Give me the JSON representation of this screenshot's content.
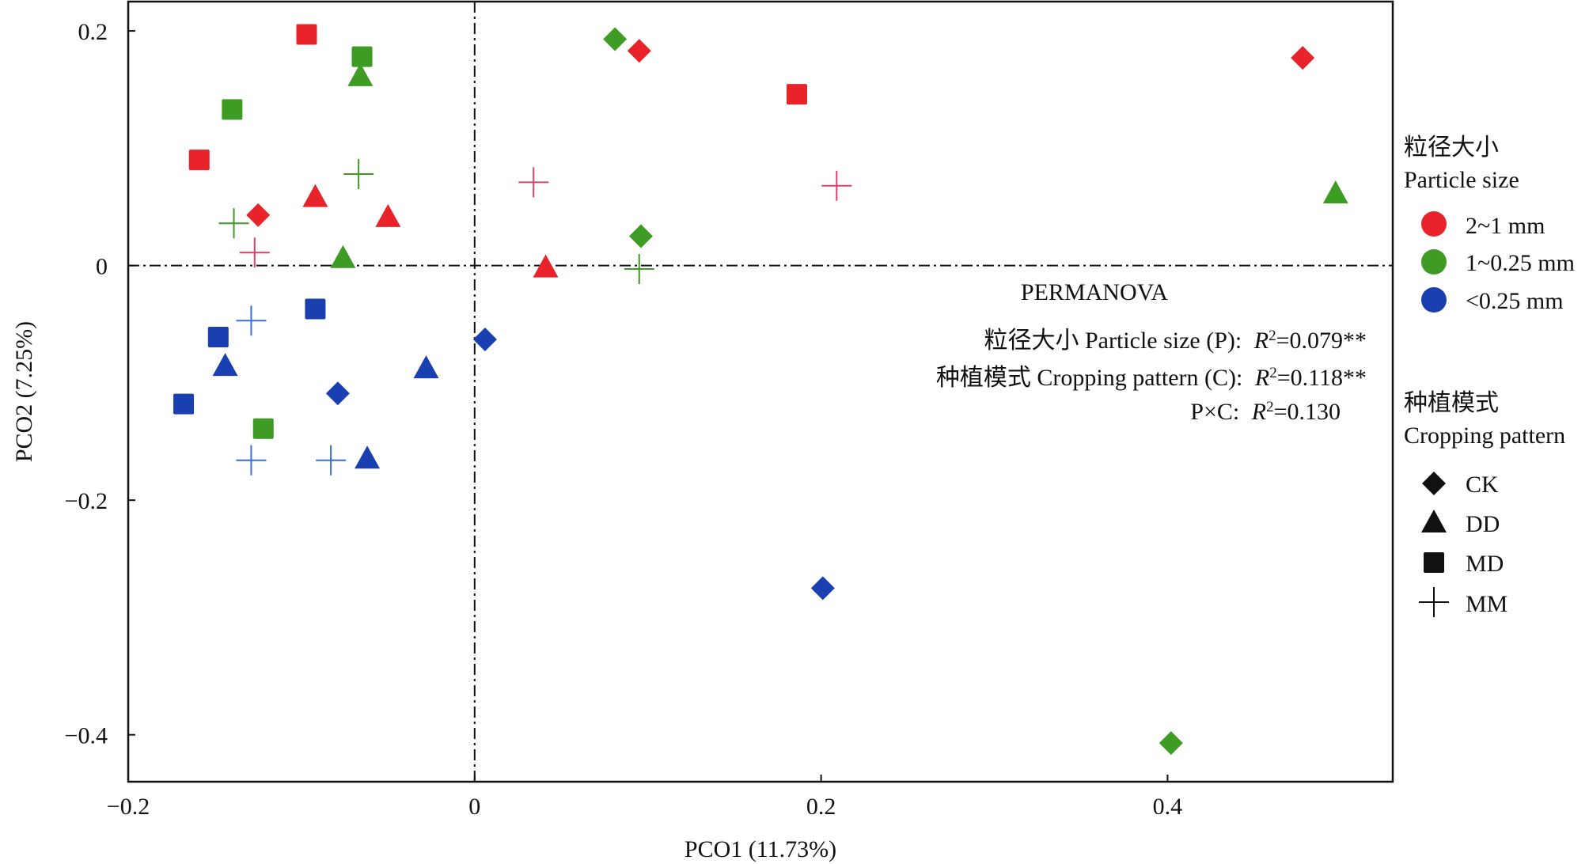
{
  "chart_data": {
    "type": "scatter",
    "xlabel": "PCO1 (11.73%)",
    "ylabel": "PCO2 (7.25%)",
    "xlim": [
      -0.2,
      0.53
    ],
    "ylim": [
      -0.44,
      0.225
    ],
    "x_ticks": [
      {
        "value": -0.2,
        "label": "−0.2"
      },
      {
        "value": 0,
        "label": "0"
      },
      {
        "value": 0.2,
        "label": "0.2"
      },
      {
        "value": 0.4,
        "label": "0.4"
      }
    ],
    "y_ticks": [
      {
        "value": 0.2,
        "label": "0.2"
      },
      {
        "value": 0,
        "label": "0"
      },
      {
        "value": -0.2,
        "label": "−0.2"
      },
      {
        "value": -0.4,
        "label": "−0.4"
      }
    ],
    "reference_lines": {
      "x": 0,
      "y": 0,
      "style": "dash-dot"
    },
    "grid": false,
    "colors": {
      "2~1 mm": "#e8242a",
      "1~0.25 mm": "#3e9b23",
      "<0.25 mm": "#1a3fb0"
    },
    "cross_colors": {
      "2~1 mm": "#d9406a",
      "1~0.25 mm": "#3e9b23",
      "<0.25 mm": "#3a6fd6"
    },
    "points": [
      {
        "x": 0.095,
        "y": 0.183,
        "size": "2~1 mm",
        "pattern": "CK"
      },
      {
        "x": 0.478,
        "y": 0.177,
        "size": "2~1 mm",
        "pattern": "CK"
      },
      {
        "x": -0.125,
        "y": 0.043,
        "size": "2~1 mm",
        "pattern": "CK"
      },
      {
        "x": -0.092,
        "y": 0.058,
        "size": "2~1 mm",
        "pattern": "DD"
      },
      {
        "x": -0.05,
        "y": 0.041,
        "size": "2~1 mm",
        "pattern": "DD"
      },
      {
        "x": 0.041,
        "y": -0.002,
        "size": "2~1 mm",
        "pattern": "DD"
      },
      {
        "x": -0.097,
        "y": 0.197,
        "size": "2~1 mm",
        "pattern": "MD"
      },
      {
        "x": -0.159,
        "y": 0.09,
        "size": "2~1 mm",
        "pattern": "MD"
      },
      {
        "x": 0.186,
        "y": 0.146,
        "size": "2~1 mm",
        "pattern": "MD"
      },
      {
        "x": 0.034,
        "y": 0.071,
        "size": "2~1 mm",
        "pattern": "MM"
      },
      {
        "x": 0.209,
        "y": 0.068,
        "size": "2~1 mm",
        "pattern": "MM"
      },
      {
        "x": -0.127,
        "y": 0.011,
        "size": "2~1 mm",
        "pattern": "MM"
      },
      {
        "x": 0.081,
        "y": 0.193,
        "size": "1~0.25 mm",
        "pattern": "CK"
      },
      {
        "x": 0.096,
        "y": 0.025,
        "size": "1~0.25 mm",
        "pattern": "CK"
      },
      {
        "x": 0.402,
        "y": -0.407,
        "size": "1~0.25 mm",
        "pattern": "CK"
      },
      {
        "x": -0.066,
        "y": 0.161,
        "size": "1~0.25 mm",
        "pattern": "DD"
      },
      {
        "x": -0.076,
        "y": 0.006,
        "size": "1~0.25 mm",
        "pattern": "DD"
      },
      {
        "x": 0.497,
        "y": 0.061,
        "size": "1~0.25 mm",
        "pattern": "DD"
      },
      {
        "x": -0.065,
        "y": 0.178,
        "size": "1~0.25 mm",
        "pattern": "MD"
      },
      {
        "x": -0.14,
        "y": 0.133,
        "size": "1~0.25 mm",
        "pattern": "MD"
      },
      {
        "x": -0.122,
        "y": -0.139,
        "size": "1~0.25 mm",
        "pattern": "MD"
      },
      {
        "x": -0.067,
        "y": 0.078,
        "size": "1~0.25 mm",
        "pattern": "MM"
      },
      {
        "x": -0.139,
        "y": 0.036,
        "size": "1~0.25 mm",
        "pattern": "MM"
      },
      {
        "x": 0.095,
        "y": -0.003,
        "size": "1~0.25 mm",
        "pattern": "MM"
      },
      {
        "x": 0.006,
        "y": -0.063,
        "size": "<0.25 mm",
        "pattern": "CK"
      },
      {
        "x": -0.079,
        "y": -0.109,
        "size": "<0.25 mm",
        "pattern": "CK"
      },
      {
        "x": 0.201,
        "y": -0.275,
        "size": "<0.25 mm",
        "pattern": "CK"
      },
      {
        "x": -0.144,
        "y": -0.086,
        "size": "<0.25 mm",
        "pattern": "DD"
      },
      {
        "x": -0.028,
        "y": -0.088,
        "size": "<0.25 mm",
        "pattern": "DD"
      },
      {
        "x": -0.062,
        "y": -0.165,
        "size": "<0.25 mm",
        "pattern": "DD"
      },
      {
        "x": -0.148,
        "y": -0.061,
        "size": "<0.25 mm",
        "pattern": "MD"
      },
      {
        "x": -0.092,
        "y": -0.037,
        "size": "<0.25 mm",
        "pattern": "MD"
      },
      {
        "x": -0.168,
        "y": -0.118,
        "size": "<0.25 mm",
        "pattern": "MD"
      },
      {
        "x": -0.129,
        "y": -0.047,
        "size": "<0.25 mm",
        "pattern": "MM"
      },
      {
        "x": -0.129,
        "y": -0.166,
        "size": "<0.25 mm",
        "pattern": "MM"
      },
      {
        "x": -0.083,
        "y": -0.166,
        "size": "<0.25 mm",
        "pattern": "MM"
      }
    ],
    "annotation": {
      "title": "PERMANOVA",
      "lines": [
        {
          "label": "粒径大小 Particle size (P):",
          "stat": "R",
          "sup": "2",
          "value": "=0.079**"
        },
        {
          "label": "种植模式 Cropping pattern (C):",
          "stat": "R",
          "sup": "2",
          "value": "=0.118**"
        },
        {
          "label": "P×C:",
          "stat": "R",
          "sup": "2",
          "value": "=0.130"
        }
      ]
    },
    "legend": {
      "placement": "right",
      "size": {
        "title_cn": "粒径大小",
        "title_en": "Particle size",
        "items": [
          {
            "label": "2~1 mm",
            "color": "#e8242a"
          },
          {
            "label": "1~0.25 mm",
            "color": "#3e9b23"
          },
          {
            "label": "<0.25 mm",
            "color": "#1a3fb0"
          }
        ]
      },
      "pattern": {
        "title_cn": "种植模式",
        "title_en": "Cropping pattern",
        "items": [
          {
            "label": "CK",
            "shape": "diamond"
          },
          {
            "label": "DD",
            "shape": "triangle"
          },
          {
            "label": "MD",
            "shape": "square"
          },
          {
            "label": "MM",
            "shape": "cross"
          }
        ]
      }
    }
  }
}
